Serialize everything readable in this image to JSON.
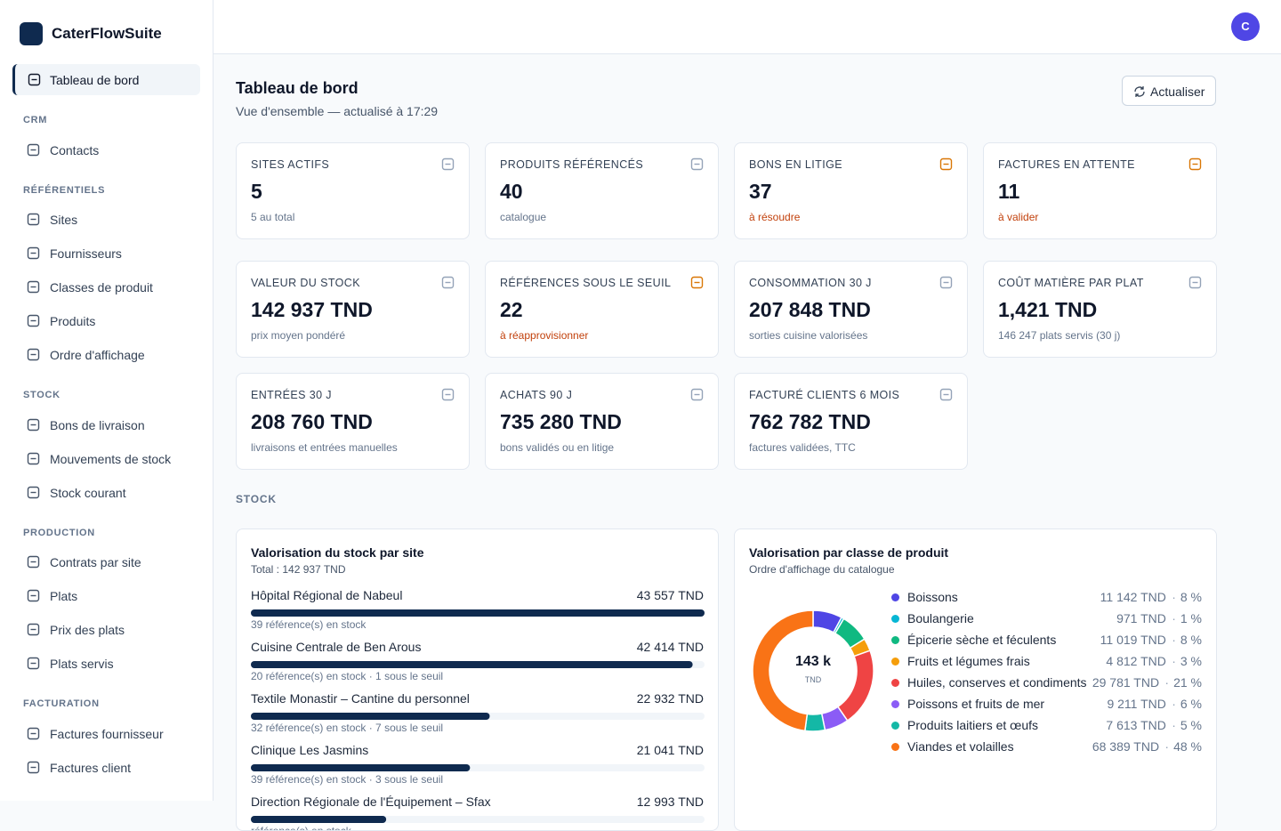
{
  "brand": "CaterFlowSuite",
  "avatar": "C",
  "nav": {
    "active": "Tableau de bord",
    "groups": [
      {
        "title": "CRM",
        "items": [
          "Contacts"
        ]
      },
      {
        "title": "RÉFÉRENTIELS",
        "items": [
          "Sites",
          "Fournisseurs",
          "Classes de produit",
          "Produits",
          "Ordre d'affichage"
        ]
      },
      {
        "title": "STOCK",
        "items": [
          "Bons de livraison",
          "Mouvements de stock",
          "Stock courant"
        ]
      },
      {
        "title": "PRODUCTION",
        "items": [
          "Contrats par site",
          "Plats",
          "Prix des plats",
          "Plats servis"
        ]
      },
      {
        "title": "FACTURATION",
        "items": [
          "Factures fournisseur",
          "Factures client"
        ]
      }
    ]
  },
  "header": {
    "title": "Tableau de bord",
    "subtitle": "Vue d'ensemble — actualisé à 17:29",
    "button": "Actualiser"
  },
  "kpis": [
    {
      "label": "SITES ACTIFS",
      "value": "5",
      "note": "5 au total",
      "tone": "muted"
    },
    {
      "label": "PRODUITS RÉFÉRENCÉS",
      "value": "40",
      "note": "catalogue",
      "tone": "muted"
    },
    {
      "label": "BONS EN LITIGE",
      "value": "37",
      "note": "à résoudre",
      "tone": "warning"
    },
    {
      "label": "FACTURES EN ATTENTE",
      "value": "11",
      "note": "à valider",
      "tone": "warning"
    },
    {
      "label": "VALEUR DU STOCK",
      "value": "142 937 TND",
      "note": "prix moyen pondéré",
      "tone": "muted"
    },
    {
      "label": "RÉFÉRENCES SOUS LE SEUIL",
      "value": "22",
      "note": "à réapprovisionner",
      "tone": "warning"
    },
    {
      "label": "CONSOMMATION 30 J",
      "value": "207 848 TND",
      "note": "sorties cuisine valorisées",
      "tone": "muted"
    },
    {
      "label": "COÛT MATIÈRE PAR PLAT",
      "value": "1,421 TND",
      "note": "146 247 plats servis (30 j)",
      "tone": "muted"
    },
    {
      "label": "ENTRÉES 30 J",
      "value": "208 760 TND",
      "note": "livraisons et entrées manuelles",
      "tone": "muted"
    },
    {
      "label": "ACHATS 90 J",
      "value": "735 280 TND",
      "note": "bons validés ou en litige",
      "tone": "muted"
    },
    {
      "label": "FACTURÉ CLIENTS 6 MOIS",
      "value": "762 782 TND",
      "note": "factures validées, TTC",
      "tone": "muted"
    }
  ],
  "section": "STOCK",
  "stock_by_site": {
    "title": "Valorisation du stock par site",
    "subtitle": "Total : 142 937 TND",
    "color": "#0f2a4f",
    "sites": [
      {
        "name": "Hôpital Régional de Nabeul",
        "value": 43557,
        "value_label": "43 557 TND",
        "detail": "39 référence(s) en stock"
      },
      {
        "name": "Cuisine Centrale de Ben Arous",
        "value": 42414,
        "value_label": "42 414 TND",
        "detail": "20 référence(s) en stock · 1 sous le seuil"
      },
      {
        "name": "Textile Monastir – Cantine du personnel",
        "value": 22932,
        "value_label": "22 932 TND",
        "detail": "32 référence(s) en stock · 7 sous le seuil"
      },
      {
        "name": "Clinique Les Jasmins",
        "value": 21041,
        "value_label": "21 041 TND",
        "detail": "39 référence(s) en stock · 3 sous le seuil"
      },
      {
        "name": "Direction Régionale de l'Équipement – Sfax",
        "value": 12993,
        "value_label": "12 993 TND",
        "detail": "référence(s) en stock"
      }
    ]
  },
  "by_class": {
    "type": "donut",
    "title": "Valorisation par classe de produit",
    "subtitle": "Ordre d'affichage du catalogue",
    "center_value": "143 k",
    "center_unit": "TND",
    "classes": [
      {
        "name": "Boissons",
        "color": "#4f46e5",
        "value": 11142,
        "value_label": "11 142 TND",
        "share_label": "8 %"
      },
      {
        "name": "Boulangerie",
        "color": "#06b6d4",
        "value": 971,
        "value_label": "971 TND",
        "share_label": "1 %"
      },
      {
        "name": "Épicerie sèche et féculents",
        "color": "#10b981",
        "value": 11019,
        "value_label": "11 019 TND",
        "share_label": "8 %"
      },
      {
        "name": "Fruits et légumes frais",
        "color": "#f59e0b",
        "value": 4812,
        "value_label": "4 812 TND",
        "share_label": "3 %"
      },
      {
        "name": "Huiles, conserves et condiments",
        "color": "#ef4444",
        "value": 29781,
        "value_label": "29 781 TND",
        "share_label": "21 %"
      },
      {
        "name": "Poissons et fruits de mer",
        "color": "#8b5cf6",
        "value": 9211,
        "value_label": "9 211 TND",
        "share_label": "6 %"
      },
      {
        "name": "Produits laitiers et œufs",
        "color": "#14b8a6",
        "value": 7613,
        "value_label": "7 613 TND",
        "share_label": "5 %"
      },
      {
        "name": "Viandes et volailles",
        "color": "#f97316",
        "value": 68389,
        "value_label": "68 389 TND",
        "share_label": "48 %"
      }
    ]
  }
}
